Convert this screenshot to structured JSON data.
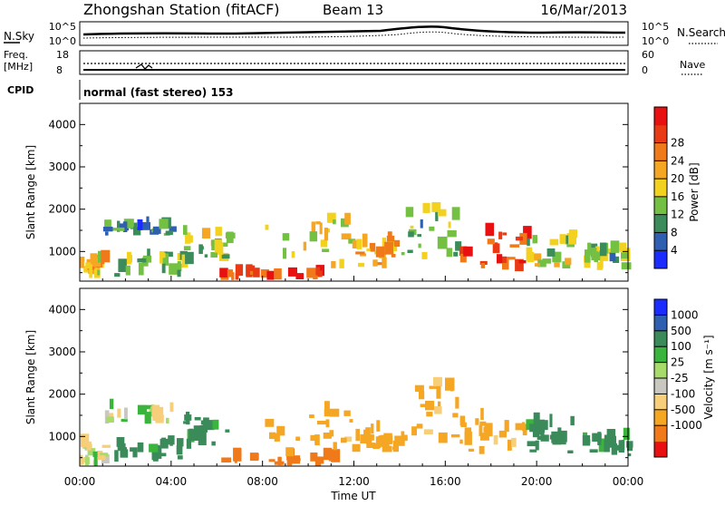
{
  "header": {
    "station": "Zhongshan Station (fitACF)",
    "beam": "Beam 13",
    "date": "16/Mar/2013"
  },
  "noise_panel": {
    "left_label": "N.Sky",
    "left_ticks": [
      "10^5",
      "10^0"
    ],
    "right_label": "N.Search",
    "right_ticks": [
      "10^5",
      "10^0"
    ]
  },
  "freq_panel": {
    "left_label_line1": "Freq.",
    "left_label_line2": "[MHz]",
    "left_ticks": [
      "18",
      "8"
    ],
    "right_label": "Nave",
    "right_ticks": [
      "60",
      "0"
    ]
  },
  "cpid": {
    "label": "CPID",
    "value": "normal (fast stereo) 153"
  },
  "colors": {
    "power": [
      "#1a2cff",
      "#2f5fb0",
      "#3b8c5a",
      "#74c043",
      "#f2d21e",
      "#f5a623",
      "#f07a1a",
      "#e83a14",
      "#e81010"
    ],
    "velocity": [
      "#e81010",
      "#f07a1a",
      "#f5a623",
      "#f7cf7a",
      "#c8c8c0",
      "#a8dc6a",
      "#3ab43c",
      "#3a8a5a",
      "#2f5fb0",
      "#1a2cff"
    ]
  },
  "chart_data": [
    {
      "type": "heatmap",
      "panel": "power",
      "ylabel": "Slant Range [km]",
      "ylim": [
        300,
        4500
      ],
      "yticks": [
        "1000",
        "2000",
        "3000",
        "4000"
      ],
      "xlim": [
        "00:00",
        "24:00"
      ],
      "colorbar_label": "Power [dB]",
      "colorbar_ticks": [
        "4",
        "8",
        "12",
        "16",
        "20",
        "24",
        "28"
      ],
      "colorbar_range": [
        0,
        32
      ],
      "regions": [
        {
          "t0": 0.0,
          "t1": 1.0,
          "r0": 300,
          "r1": 800,
          "value": 18
        },
        {
          "t0": 1.0,
          "t1": 4.0,
          "r0": 1350,
          "r1": 1550,
          "value": 8
        },
        {
          "t0": 1.5,
          "t1": 4.5,
          "r0": 400,
          "r1": 900,
          "value": 12
        },
        {
          "t0": 4.5,
          "t1": 6.5,
          "r0": 700,
          "r1": 1400,
          "value": 14
        },
        {
          "t0": 6.0,
          "t1": 11.0,
          "r0": 300,
          "r1": 450,
          "value": 26
        },
        {
          "t0": 8.0,
          "t1": 12.0,
          "r0": 500,
          "r1": 1700,
          "value": 16
        },
        {
          "t0": 12.0,
          "t1": 14.0,
          "r0": 600,
          "r1": 1200,
          "value": 20
        },
        {
          "t0": 14.0,
          "t1": 16.5,
          "r0": 800,
          "r1": 2200,
          "value": 12
        },
        {
          "t0": 16.5,
          "t1": 19.5,
          "r0": 500,
          "r1": 1400,
          "value": 28
        },
        {
          "t0": 19.5,
          "t1": 21.5,
          "r0": 600,
          "r1": 1400,
          "value": 14
        },
        {
          "t0": 22.0,
          "t1": 24.0,
          "r0": 500,
          "r1": 1000,
          "value": 12
        }
      ]
    },
    {
      "type": "heatmap",
      "panel": "velocity",
      "ylabel": "Slant Range [km]",
      "ylim": [
        300,
        4500
      ],
      "yticks": [
        "1000",
        "2000",
        "3000",
        "4000"
      ],
      "xlim": [
        "00:00",
        "24:00"
      ],
      "xticks": [
        "00:00",
        "04:00",
        "08:00",
        "12:00",
        "16:00",
        "20:00",
        "00:00"
      ],
      "xlabel": "Time UT",
      "colorbar_label": "Velocity [m s⁻¹]",
      "colorbar_ticks": [
        "1000",
        "500",
        "100",
        "25",
        "-25",
        "-100",
        "-500",
        "-1000"
      ],
      "regions": [
        {
          "t0": 0.0,
          "t1": 1.0,
          "r0": 300,
          "r1": 800,
          "value": -25
        },
        {
          "t0": 1.0,
          "t1": 4.0,
          "r0": 1300,
          "r1": 1650,
          "value": 0
        },
        {
          "t0": 1.5,
          "t1": 4.5,
          "r0": 400,
          "r1": 900,
          "value": 150
        },
        {
          "t0": 4.5,
          "t1": 6.5,
          "r0": 700,
          "r1": 1400,
          "value": 150
        },
        {
          "t0": 6.0,
          "t1": 11.0,
          "r0": 300,
          "r1": 450,
          "value": -600
        },
        {
          "t0": 8.0,
          "t1": 12.0,
          "r0": 500,
          "r1": 1700,
          "value": -150
        },
        {
          "t0": 12.0,
          "t1": 14.0,
          "r0": 600,
          "r1": 1200,
          "value": -200
        },
        {
          "t0": 14.0,
          "t1": 16.5,
          "r0": 800,
          "r1": 2200,
          "value": -150
        },
        {
          "t0": 16.5,
          "t1": 19.5,
          "r0": 500,
          "r1": 1400,
          "value": -150
        },
        {
          "t0": 19.5,
          "t1": 21.5,
          "r0": 600,
          "r1": 1400,
          "value": 150
        },
        {
          "t0": 22.0,
          "t1": 24.0,
          "r0": 500,
          "r1": 1000,
          "value": 150
        }
      ]
    }
  ]
}
